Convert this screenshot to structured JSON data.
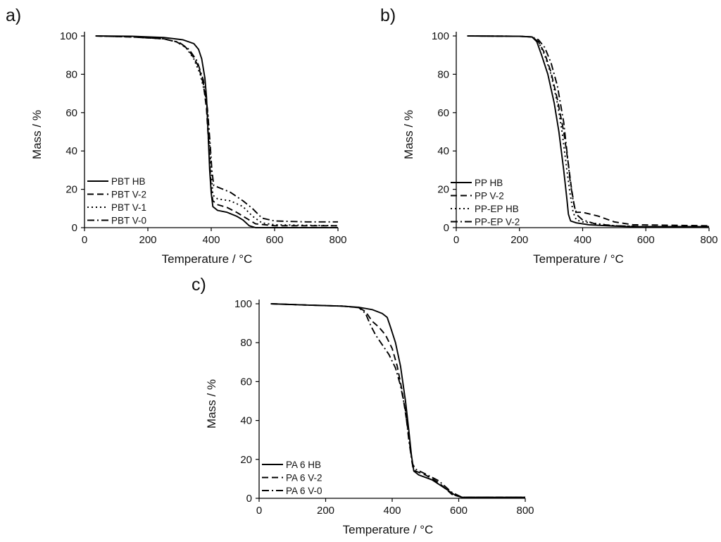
{
  "chart_data": [
    {
      "type": "line",
      "panel_label": "a)",
      "xlabel": "Temperature  / °C",
      "ylabel": "Mass  / %",
      "xlim": [
        0,
        800
      ],
      "ylim": [
        0,
        100
      ],
      "xticks": [
        "0",
        "200",
        "400",
        "600",
        "800"
      ],
      "yticks": [
        "0",
        "20",
        "40",
        "60",
        "80",
        "100"
      ],
      "legend_position": "bottom-left",
      "series": [
        {
          "name": "PBT HB",
          "dash": "solid",
          "x": [
            35,
            150,
            250,
            310,
            345,
            360,
            370,
            380,
            385,
            390,
            395,
            400,
            405,
            420,
            450,
            480,
            500,
            520,
            540,
            800
          ],
          "y": [
            100,
            99.8,
            99.2,
            98,
            96,
            93,
            88,
            78,
            68,
            50,
            30,
            18,
            11,
            9,
            8,
            6,
            4,
            1,
            0,
            0
          ]
        },
        {
          "name": "PBT V-2",
          "dash": "dash",
          "x": [
            35,
            150,
            250,
            290,
            320,
            340,
            360,
            375,
            385,
            393,
            400,
            405,
            420,
            450,
            480,
            510,
            540,
            600,
            800
          ],
          "y": [
            100,
            99.5,
            98.5,
            97,
            94,
            90,
            84,
            75,
            62,
            40,
            20,
            14,
            12,
            10.5,
            8,
            5,
            2,
            1,
            1
          ]
        },
        {
          "name": "PBT V-1",
          "dash": "dot",
          "x": [
            35,
            150,
            250,
            290,
            320,
            345,
            365,
            380,
            390,
            397,
            405,
            420,
            460,
            500,
            530,
            560,
            600,
            800
          ],
          "y": [
            100,
            99.5,
            98.5,
            97,
            94,
            88,
            80,
            70,
            58,
            38,
            17,
            15,
            14,
            11,
            6,
            2.5,
            1.5,
            1
          ]
        },
        {
          "name": "PBT V-0",
          "dash": "dashdot",
          "x": [
            35,
            150,
            250,
            300,
            330,
            355,
            375,
            388,
            396,
            402,
            408,
            430,
            460,
            500,
            530,
            560,
            600,
            700,
            800
          ],
          "y": [
            100,
            99.5,
            98.5,
            96.5,
            93,
            87,
            77,
            62,
            45,
            30,
            22,
            20.5,
            18.5,
            14,
            10,
            5,
            3.5,
            3,
            3
          ]
        }
      ]
    },
    {
      "type": "line",
      "panel_label": "b)",
      "xlabel": "Temperature  / °C",
      "ylabel": "Mass  / %",
      "xlim": [
        0,
        800
      ],
      "ylim": [
        0,
        100
      ],
      "xticks": [
        "0",
        "200",
        "400",
        "600",
        "800"
      ],
      "yticks": [
        "0",
        "20",
        "40",
        "60",
        "80",
        "100"
      ],
      "legend_position": "bottom-left",
      "series": [
        {
          "name": "PP HB",
          "dash": "solid",
          "x": [
            35,
            200,
            240,
            255,
            270,
            290,
            310,
            325,
            340,
            350,
            355,
            362,
            380,
            420,
            500,
            550,
            800
          ],
          "y": [
            100,
            99.8,
            99.5,
            97,
            90,
            80,
            65,
            50,
            30,
            15,
            7,
            3.5,
            2.5,
            1.5,
            0.8,
            0.5,
            0.5
          ]
        },
        {
          "name": "PP V-2",
          "dash": "dash",
          "x": [
            35,
            200,
            240,
            260,
            280,
            300,
            320,
            340,
            355,
            365,
            375,
            380,
            400,
            450,
            500,
            560,
            800
          ],
          "y": [
            100,
            99.8,
            99.5,
            97,
            91,
            81,
            67,
            50,
            33,
            20,
            10,
            8,
            8,
            6,
            3,
            1.5,
            1
          ]
        },
        {
          "name": "PP-EP HB",
          "dash": "dot",
          "x": [
            35,
            200,
            240,
            260,
            280,
            300,
            320,
            335,
            350,
            360,
            370,
            380,
            400,
            450,
            500,
            600,
            800
          ],
          "y": [
            100,
            99.8,
            99.5,
            97,
            90,
            80,
            65,
            50,
            30,
            18,
            8,
            4,
            3,
            2,
            1,
            0.5,
            0.5
          ]
        },
        {
          "name": "PP-EP V-2",
          "dash": "dashdot",
          "x": [
            35,
            200,
            240,
            260,
            280,
            300,
            320,
            340,
            350,
            360,
            370,
            380,
            400,
            440,
            500,
            600,
            800
          ],
          "y": [
            100,
            99.8,
            99.5,
            98,
            94,
            86,
            74,
            55,
            40,
            25,
            14,
            7,
            4,
            2,
            1,
            0.5,
            0.5
          ]
        }
      ]
    },
    {
      "type": "line",
      "panel_label": "c)",
      "xlabel": "Temperature  / °C",
      "ylabel": "Mass  / %",
      "xlim": [
        0,
        800
      ],
      "ylim": [
        0,
        100
      ],
      "xticks": [
        "0",
        "200",
        "400",
        "600",
        "800"
      ],
      "yticks": [
        "0",
        "20",
        "40",
        "60",
        "80",
        "100"
      ],
      "legend_position": "bottom-left",
      "series": [
        {
          "name": "PA 6 HB",
          "dash": "solid",
          "x": [
            35,
            150,
            250,
            300,
            340,
            370,
            385,
            395,
            410,
            425,
            440,
            450,
            458,
            465,
            480,
            520,
            560,
            590,
            610,
            800
          ],
          "y": [
            100,
            99.3,
            98.8,
            98.2,
            97,
            95,
            93,
            88,
            80,
            68,
            50,
            35,
            22,
            14,
            12,
            9.5,
            5,
            1.5,
            0.5,
            0.5
          ]
        },
        {
          "name": "PA 6 V-2",
          "dash": "dash",
          "x": [
            35,
            150,
            250,
            300,
            320,
            340,
            360,
            380,
            400,
            415,
            430,
            445,
            455,
            462,
            470,
            500,
            540,
            580,
            610,
            800
          ],
          "y": [
            100,
            99.3,
            98.8,
            98,
            96,
            91,
            88,
            84,
            77,
            68,
            55,
            38,
            25,
            16,
            14,
            12,
            8,
            2,
            0.5,
            0.5
          ]
        },
        {
          "name": "PA 6 V-0",
          "dash": "dashdot",
          "x": [
            35,
            150,
            250,
            300,
            320,
            335,
            350,
            370,
            390,
            410,
            425,
            440,
            450,
            460,
            470,
            500,
            540,
            580,
            610,
            800
          ],
          "y": [
            100,
            99.3,
            98.8,
            98,
            95,
            89,
            84,
            79,
            74,
            67,
            58,
            45,
            30,
            18,
            15,
            12.5,
            9,
            3,
            0.5,
            0.5
          ]
        }
      ]
    }
  ]
}
